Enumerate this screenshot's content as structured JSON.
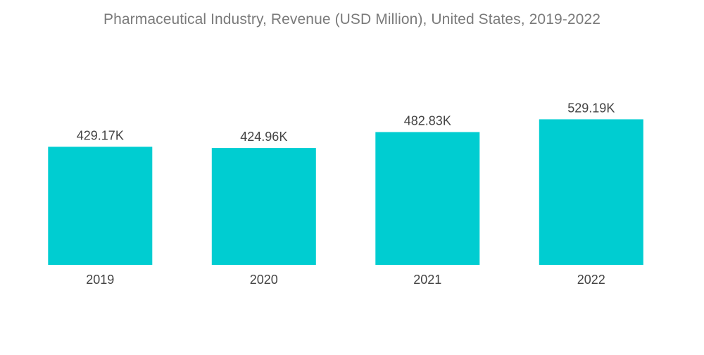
{
  "chart_data": {
    "type": "bar",
    "title": "Pharmaceutical Industry, Revenue (USD Million), United States, 2019-2022",
    "xlabel": "",
    "ylabel": "",
    "categories": [
      "2019",
      "2020",
      "2021",
      "2022"
    ],
    "values": [
      429.17,
      424.96,
      482.83,
      529.19
    ],
    "value_labels": [
      "429.17K",
      "424.96K",
      "482.83K",
      "529.19K"
    ],
    "ylim": [
      0,
      560
    ],
    "grid": false,
    "legend": "none",
    "bar_color": "#00CDD1"
  }
}
